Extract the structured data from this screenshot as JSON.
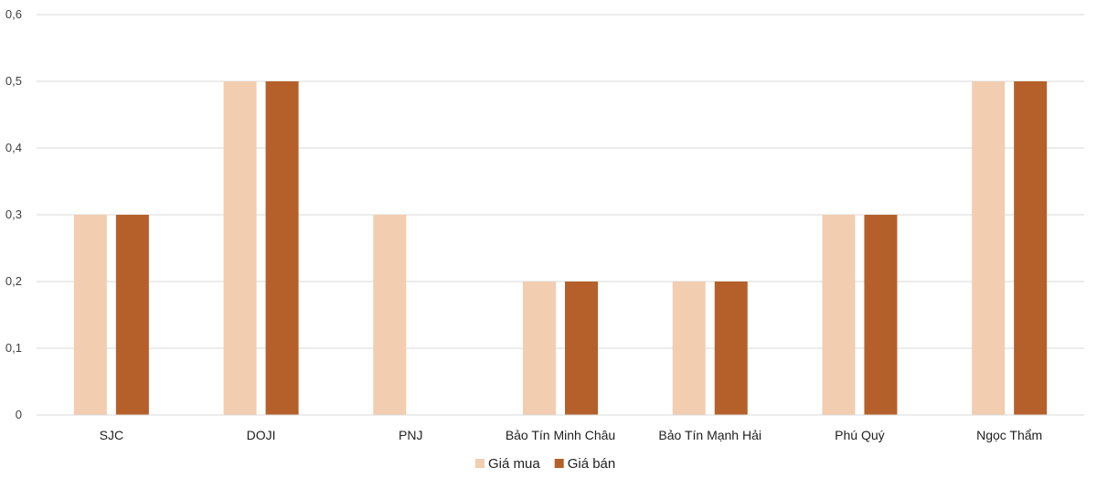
{
  "chart_data": {
    "type": "bar",
    "categories": [
      "SJC",
      "DOJI",
      "PNJ",
      "Bảo Tín Minh Châu",
      "Bảo Tín Mạnh Hải",
      "Phú Quý",
      "Ngọc Thẩm"
    ],
    "series": [
      {
        "name": "Giá mua",
        "values": [
          0.3,
          0.5,
          0.3,
          0.2,
          0.2,
          0.3,
          0.5
        ],
        "color": "#f2cdb0"
      },
      {
        "name": "Giá bán",
        "values": [
          0.3,
          0.5,
          0,
          0.2,
          0.2,
          0.3,
          0.5
        ],
        "color": "#b5602a"
      }
    ],
    "yticks": [
      "0",
      "0,1",
      "0,2",
      "0,3",
      "0,4",
      "0,5",
      "0,6"
    ],
    "ylim": [
      0,
      0.6
    ],
    "grid": true,
    "legend_position": "bottom"
  }
}
